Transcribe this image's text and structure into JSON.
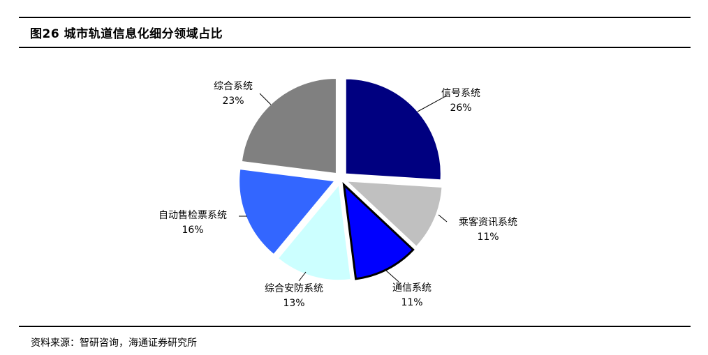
{
  "header": {
    "title": "图26 城市轨道信息化细分领域占比"
  },
  "footer": {
    "source": "资料来源：智研咨询，海通证券研究所"
  },
  "chart_data": {
    "type": "pie",
    "title": "图26 城市轨道信息化细分领域占比",
    "slices": [
      {
        "name": "信号系统",
        "value": 26,
        "label": "26%",
        "color": "#000080"
      },
      {
        "name": "乘客资讯系统",
        "value": 11,
        "label": "11%",
        "color": "#c0c0c0"
      },
      {
        "name": "通信系统",
        "value": 11,
        "label": "11%",
        "color": "#0000ff"
      },
      {
        "name": "综合安防系统",
        "value": 13,
        "label": "13%",
        "color": "#ccffff"
      },
      {
        "name": "自动售检票系统",
        "value": 16,
        "label": "16%",
        "color": "#3366ff"
      },
      {
        "name": "综合系统",
        "value": 23,
        "label": "23%",
        "color": "#808080"
      }
    ],
    "highlighted": "通信系统",
    "legend": "none",
    "exploded": true
  }
}
